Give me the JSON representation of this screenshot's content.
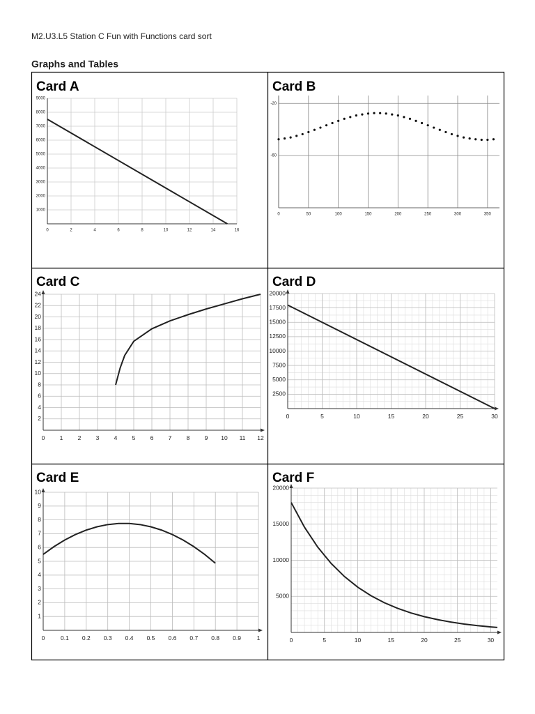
{
  "header": {
    "title": "M2.U3.L5 Station C Fun with Functions card sort",
    "subtitle": "Graphs and Tables"
  },
  "cards": [
    {
      "title": "Card A",
      "chart_data": {
        "type": "line",
        "x": [
          0,
          15.2
        ],
        "values": [
          7500,
          0
        ],
        "color": "#222",
        "xlim": [
          0,
          16
        ],
        "ylim": [
          0,
          9000
        ],
        "xticks": [
          0,
          2,
          4,
          6,
          8,
          10,
          12,
          14,
          16
        ],
        "yticks": [
          1000,
          2000,
          3000,
          4000,
          5000,
          6000,
          7000,
          8000,
          9000
        ],
        "grid": true
      }
    },
    {
      "title": "Card B",
      "chart_data": {
        "type": "scatter",
        "x": [
          0,
          10,
          20,
          30,
          40,
          50,
          60,
          70,
          80,
          90,
          100,
          110,
          120,
          130,
          140,
          150,
          160,
          170,
          180,
          190,
          200,
          210,
          220,
          230,
          240,
          250,
          260,
          270,
          280,
          290,
          300,
          310,
          320,
          330,
          340,
          350,
          360
        ],
        "values": [
          -47.5,
          -46.9,
          -46.1,
          -44.9,
          -43.6,
          -42.0,
          -40.3,
          -38.6,
          -36.8,
          -35.1,
          -33.4,
          -31.8,
          -30.5,
          -29.3,
          -28.5,
          -27.8,
          -27.5,
          -27.5,
          -27.8,
          -28.5,
          -29.3,
          -30.5,
          -31.8,
          -33.4,
          -35.1,
          -36.8,
          -38.6,
          -40.3,
          -42.0,
          -43.6,
          -44.9,
          -46.1,
          -46.9,
          -47.5,
          -47.9,
          -47.9,
          -47.5
        ],
        "color": "#111",
        "xlim": [
          0,
          370
        ],
        "ylim": [
          -100,
          -14
        ],
        "xticks": [
          0,
          50,
          100,
          150,
          200,
          250,
          300,
          350
        ],
        "yticks": [
          -20,
          -60
        ],
        "grid": true
      }
    },
    {
      "title": "Card C",
      "chart_data": {
        "type": "line",
        "x": [
          4,
          4.25,
          4.5,
          5,
          6,
          7,
          8,
          9,
          10,
          11,
          12
        ],
        "values": [
          8,
          11,
          13.2,
          15.7,
          17.9,
          19.3,
          20.4,
          21.4,
          22.3,
          23.2,
          24
        ],
        "color": "#222",
        "xlim": [
          0,
          12
        ],
        "ylim": [
          0,
          24
        ],
        "xticks": [
          0,
          1,
          2,
          3,
          4,
          5,
          6,
          7,
          8,
          9,
          10,
          11,
          12
        ],
        "yticks": [
          2,
          4,
          6,
          8,
          10,
          12,
          14,
          16,
          18,
          20,
          22,
          24
        ],
        "grid": true,
        "axis_arrows": true
      }
    },
    {
      "title": "Card D",
      "chart_data": {
        "type": "line",
        "x": [
          0,
          30
        ],
        "values": [
          18000,
          0
        ],
        "color": "#222",
        "xlim": [
          0,
          30
        ],
        "ylim": [
          0,
          20000
        ],
        "xticks": [
          0,
          5,
          10,
          15,
          20,
          25,
          30
        ],
        "yticks": [
          2500,
          5000,
          7500,
          10000,
          12500,
          15000,
          17500,
          20000
        ],
        "grid": true,
        "minor_grid": true,
        "axis_arrows": true
      }
    },
    {
      "title": "Card E",
      "chart_data": {
        "type": "line",
        "x": [
          0,
          0.05,
          0.1,
          0.15,
          0.2,
          0.25,
          0.3,
          0.35,
          0.4,
          0.45,
          0.5,
          0.55,
          0.6,
          0.65,
          0.7,
          0.75,
          0.8
        ],
        "values": [
          5.5,
          6.06,
          6.54,
          6.94,
          7.26,
          7.5,
          7.66,
          7.74,
          7.74,
          7.66,
          7.5,
          7.26,
          6.94,
          6.54,
          6.06,
          5.5,
          4.86
        ],
        "color": "#222",
        "xlim": [
          0,
          1
        ],
        "ylim": [
          0,
          10
        ],
        "xticks": [
          0,
          0.1,
          0.2,
          0.3,
          0.4,
          0.5,
          0.6,
          0.7,
          0.8,
          0.9,
          1
        ],
        "yticks": [
          1,
          2,
          3,
          4,
          5,
          6,
          7,
          8,
          9,
          10
        ],
        "grid": true,
        "axis_arrows": true
      }
    },
    {
      "title": "Card F",
      "chart_data": {
        "type": "line",
        "x": [
          0,
          2,
          4,
          6,
          8,
          10,
          12,
          14,
          16,
          18,
          20,
          22,
          24,
          26,
          28,
          30,
          31
        ],
        "values": [
          18000,
          14580,
          11810,
          9566,
          7748,
          6276,
          5084,
          4118,
          3335,
          2702,
          2188,
          1773,
          1436,
          1163,
          942,
          763,
          687
        ],
        "color": "#222",
        "xlim": [
          0,
          31
        ],
        "ylim": [
          0,
          20000
        ],
        "xticks": [
          0,
          5,
          10,
          15,
          20,
          25,
          30
        ],
        "yticks": [
          5000,
          10000,
          15000,
          20000
        ],
        "grid": true,
        "minor_grid": true,
        "axis_arrows": true
      }
    }
  ]
}
